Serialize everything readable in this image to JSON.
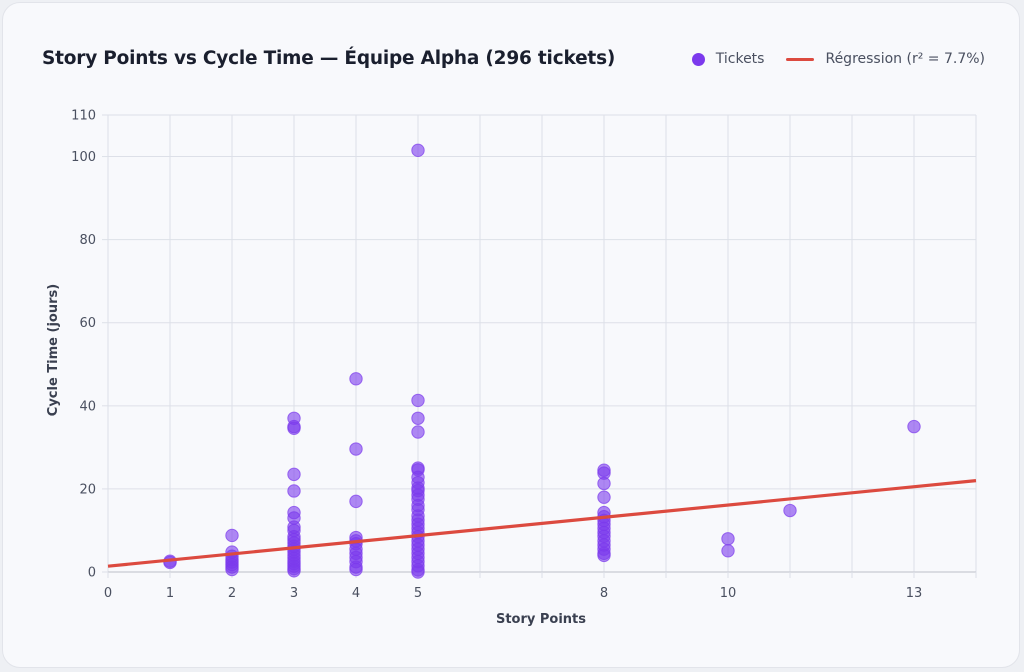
{
  "chart_data": {
    "type": "scatter",
    "title": "Story Points vs Cycle Time — Équipe Alpha (296 tickets)",
    "xlabel": "Story Points",
    "ylabel": "Cycle Time (jours)",
    "xlim": [
      0,
      14
    ],
    "ylim": [
      0,
      110
    ],
    "x_ticks": [
      0,
      1,
      2,
      3,
      4,
      5,
      6,
      7,
      8,
      9,
      10,
      11,
      12,
      13,
      14
    ],
    "x_tick_labels": [
      "0",
      "1",
      "2",
      "3",
      "4",
      "5",
      "",
      "",
      "8",
      "",
      "10",
      "",
      "",
      "13",
      ""
    ],
    "y_ticks": [
      0,
      20,
      40,
      60,
      80,
      100,
      110
    ],
    "y_tick_labels": [
      "0",
      "20",
      "40",
      "60",
      "80",
      "100",
      "110"
    ],
    "grid": true,
    "legend_position": "top-right",
    "legend": [
      {
        "name": "Tickets",
        "type": "marker",
        "color": "#7c3aed"
      },
      {
        "name": "Régression (r² = 7.7%)",
        "type": "line",
        "color": "#dc4a3f"
      }
    ],
    "series": [
      {
        "name": "Tickets",
        "type": "scatter",
        "color": "#7c3aed",
        "points": [
          [
            1,
            2.6
          ],
          [
            1,
            2.3
          ],
          [
            2,
            8.8
          ],
          [
            2,
            4.8
          ],
          [
            2,
            3.8
          ],
          [
            2,
            3.0
          ],
          [
            2,
            2.4
          ],
          [
            2,
            1.8
          ],
          [
            2,
            1.2
          ],
          [
            2,
            0.6
          ],
          [
            3,
            37
          ],
          [
            3,
            35
          ],
          [
            3,
            34.6
          ],
          [
            3,
            23.5
          ],
          [
            3,
            19.5
          ],
          [
            3,
            14.3
          ],
          [
            3,
            13
          ],
          [
            3,
            10.8
          ],
          [
            3,
            10
          ],
          [
            3,
            8.5
          ],
          [
            3,
            7.8
          ],
          [
            3,
            7
          ],
          [
            3,
            6.2
          ],
          [
            3,
            5.5
          ],
          [
            3,
            4.8
          ],
          [
            3,
            4
          ],
          [
            3,
            3.3
          ],
          [
            3,
            2.6
          ],
          [
            3,
            2
          ],
          [
            3,
            1.4
          ],
          [
            3,
            0.8
          ],
          [
            3,
            0.3
          ],
          [
            4,
            46.5
          ],
          [
            4,
            29.6
          ],
          [
            4,
            17
          ],
          [
            4,
            8.3
          ],
          [
            4,
            7.5
          ],
          [
            4,
            6.8
          ],
          [
            4,
            5.5
          ],
          [
            4,
            4.5
          ],
          [
            4,
            3.5
          ],
          [
            4,
            2.5
          ],
          [
            4,
            1.2
          ],
          [
            4,
            0.6
          ],
          [
            5,
            101.5
          ],
          [
            5,
            41.3
          ],
          [
            5,
            37
          ],
          [
            5,
            33.7
          ],
          [
            5,
            25
          ],
          [
            5,
            24.6
          ],
          [
            5,
            22.8
          ],
          [
            5,
            21.5
          ],
          [
            5,
            20.2
          ],
          [
            5,
            19.6
          ],
          [
            5,
            18.5
          ],
          [
            5,
            17.5
          ],
          [
            5,
            16
          ],
          [
            5,
            15
          ],
          [
            5,
            13.5
          ],
          [
            5,
            12.5
          ],
          [
            5,
            11.5
          ],
          [
            5,
            10.5
          ],
          [
            5,
            9.5
          ],
          [
            5,
            8.5
          ],
          [
            5,
            7.5
          ],
          [
            5,
            6.5
          ],
          [
            5,
            5.5
          ],
          [
            5,
            4.5
          ],
          [
            5,
            3.5
          ],
          [
            5,
            2.5
          ],
          [
            5,
            1.5
          ],
          [
            5,
            0.5
          ],
          [
            5,
            0
          ],
          [
            8,
            24.5
          ],
          [
            8,
            23.8
          ],
          [
            8,
            21.3
          ],
          [
            8,
            18
          ],
          [
            8,
            14.3
          ],
          [
            8,
            13.3
          ],
          [
            8,
            12.4
          ],
          [
            8,
            11.5
          ],
          [
            8,
            10.5
          ],
          [
            8,
            9.5
          ],
          [
            8,
            8.6
          ],
          [
            8,
            7.5
          ],
          [
            8,
            6.5
          ],
          [
            8,
            5.5
          ],
          [
            8,
            4.5
          ],
          [
            8,
            4
          ],
          [
            10,
            8
          ],
          [
            10,
            5.1
          ],
          [
            11,
            14.8
          ],
          [
            13,
            35
          ]
        ]
      },
      {
        "name": "Régression (r² = 7.7%)",
        "type": "line",
        "color": "#dc4a3f",
        "x": [
          0,
          14
        ],
        "y": [
          1.4,
          22.0
        ]
      }
    ]
  }
}
